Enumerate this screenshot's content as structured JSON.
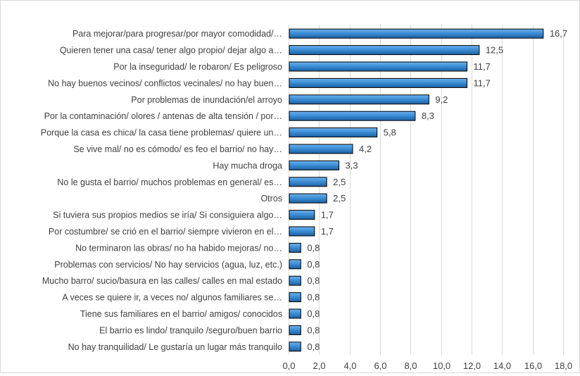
{
  "chart_data": {
    "type": "bar",
    "orientation": "horizontal",
    "categories": [
      "Para mejorar/para progresar/por mayor comodidad/…",
      "Quieren tener una casa/ tener algo propio/ dejar algo a…",
      "Por la inseguridad/ le robaron/ Es peligroso",
      "No hay buenos vecinos/ conflictos vecinales/ no hay buen…",
      "Por problemas de inundación/el arroyo",
      "Por la contaminación/ olores / antenas de alta tensión / por…",
      "Porque la casa es chica/ la casa tiene problemas/ quiere un…",
      "Se vive mal/ no es cómodo/ es feo el barrio/ no hay…",
      "Hay mucha droga",
      "No le gusta el barrio/ muchos problemas en general/ es…",
      "Otros",
      "Si tuviera sus propios medios se iría/ Si consiguiera algo…",
      "Por costumbre/ se crió en el barrio/ siempre vivieron en el…",
      "No terminaron las obras/ no ha habido mejoras/ no…",
      "Problemas con servicios/ No hay servicios (agua, luz, etc.)",
      "Mucho barro/ sucio/basura en las calles/ calles en mal estado",
      "A veces se quiere ir, a veces no/ algunos familiares se…",
      "Tiene sus familiares en el barrio/ amigos/ conocidos",
      "El barrio es lindo/ tranquilo /seguro/buen barrio",
      "No hay tranquilidad/ Le gustaría un lugar más tranquilo"
    ],
    "values": [
      16.7,
      12.5,
      11.7,
      11.7,
      9.2,
      8.3,
      5.8,
      4.2,
      3.3,
      2.5,
      2.5,
      1.7,
      1.7,
      0.8,
      0.8,
      0.8,
      0.8,
      0.8,
      0.8,
      0.8
    ],
    "value_labels": [
      "16,7",
      "12,5",
      "11,7",
      "11,7",
      "9,2",
      "8,3",
      "5,8",
      "4,2",
      "3,3",
      "2,5",
      "2,5",
      "1,7",
      "1,7",
      "0,8",
      "0,8",
      "0,8",
      "0,8",
      "0,8",
      "0,8",
      "0,8"
    ],
    "xlim": [
      0,
      18
    ],
    "x_ticks": [
      0,
      2,
      4,
      6,
      8,
      10,
      12,
      14,
      16,
      18
    ],
    "x_tick_labels": [
      "0,0",
      "2,0",
      "4,0",
      "6,0",
      "8,0",
      "10,0",
      "12,0",
      "14,0",
      "16,0",
      "18,0"
    ],
    "title": "",
    "xlabel": "",
    "ylabel": "",
    "grid": "vertical",
    "legend": "none",
    "colors": {
      "bar_top": "#6fb1ea",
      "bar_mid": "#3d8fd8",
      "bar_bottom": "#1d5fa0",
      "bar_stroke": "#000000",
      "grid": "#d9d9d9",
      "text": "#404040"
    }
  }
}
